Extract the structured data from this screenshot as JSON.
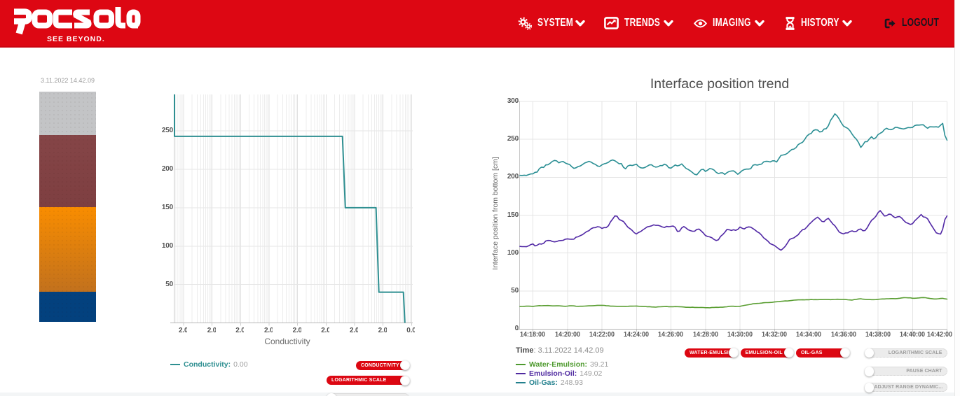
{
  "header": {
    "logo_text": "Rocsole",
    "tagline": "SEE BEYOND.",
    "nav": [
      {
        "label": "SYSTEM"
      },
      {
        "label": "TRENDS"
      },
      {
        "label": "IMAGING"
      },
      {
        "label": "HISTORY"
      }
    ],
    "logout_label": "LOGOUT",
    "brand_red": "#dd0713"
  },
  "tank": {
    "timestamp": "3.11.2022 14.42.09",
    "segments": [
      {
        "name": "gas",
        "color": "#c3c4c6"
      },
      {
        "name": "oil",
        "color": "#824245"
      },
      {
        "name": "emulsion",
        "color": "#f18a04"
      },
      {
        "name": "water",
        "color": "#03417e"
      }
    ]
  },
  "conductivity_chart": {
    "xlabel": "Conductivity",
    "yticks": [
      "250",
      "200",
      "150",
      "100",
      "50"
    ],
    "xticks": [
      "2.00",
      "2.00",
      "2.00",
      "2.00",
      "2.00",
      "2.00",
      "2.00",
      "2.00",
      "0.00"
    ],
    "legend": {
      "label": "Conductivity:",
      "value": "0.00"
    },
    "toggles_on": [
      {
        "label": "CONDUCTIVITY"
      },
      {
        "label": "LOGARITHMIC SCALE"
      }
    ]
  },
  "trend_chart": {
    "title": "Interface position trend",
    "ylabel": "Interface position from bottom [cm]",
    "yticks": [
      "300",
      "250",
      "200",
      "150",
      "100",
      "50",
      "0"
    ],
    "xticks": [
      "14:18:00",
      "14:20:00",
      "14:22:00",
      "14:24:00",
      "14:26:00",
      "14:28:00",
      "14:30:00",
      "14:32:00",
      "14:34:00",
      "14:36:00",
      "14:38:00",
      "14:40:00",
      "14:42:00"
    ],
    "time_label": "Time",
    "time_value": "3.11.2022 14.42.09",
    "legend": [
      {
        "label": "Water-Emulsion:",
        "value": "39.21",
        "color": "#4e9a2e"
      },
      {
        "label": "Emulsion-Oil:",
        "value": "149.02",
        "color": "#4f2aa0"
      },
      {
        "label": "Oil-Gas:",
        "value": "248.93",
        "color": "#22808d"
      }
    ],
    "toggles_on": [
      {
        "label": "WATER-EMULSION"
      },
      {
        "label": "EMULSION-OIL"
      },
      {
        "label": "OIL-GAS"
      }
    ],
    "toggles_off": [
      {
        "label": "LOGARITHMIC SCALE"
      },
      {
        "label": "PAUSE CHART"
      },
      {
        "label": "ADJUST RANGE DYNAMIC..."
      }
    ]
  },
  "chart_data": [
    {
      "type": "line",
      "title": "",
      "xlabel": "Conductivity",
      "ylabel": "",
      "x_scale": "log-decreasing",
      "x_tick_labels": [
        "2.00",
        "2.00",
        "2.00",
        "2.00",
        "2.00",
        "2.00",
        "2.00",
        "2.00",
        "0.00"
      ],
      "ylim": [
        0,
        298
      ],
      "grid": true,
      "series": [
        {
          "name": "Conductivity",
          "color": "#2e8f91",
          "current_value": "0.00",
          "profile_points": [
            [
              0,
              297.6
            ],
            [
              0,
              243
            ],
            [
              0.705,
              243
            ],
            [
              0.717,
              150
            ],
            [
              0.846,
              150
            ],
            [
              0.858,
              40
            ],
            [
              0.961,
              40
            ],
            [
              0.967,
              0
            ]
          ]
        }
      ]
    },
    {
      "type": "line",
      "title": "Interface position trend",
      "xlabel": "",
      "ylabel": "Interface position from bottom [cm]",
      "ylim": [
        0,
        300
      ],
      "grid": true,
      "x_minutes_start": 17.25,
      "x_minutes_step": 0.125,
      "x_window": [
        "14:17:15",
        "14:42:00"
      ],
      "series": [
        {
          "name": "Water-Emulsion",
          "color": "#5a9e32",
          "values": [
            29.42,
            29.53,
            29.76,
            29.93,
            29.92,
            29.79,
            29.65,
            30.01,
            30.32,
            30.69,
            30.5,
            30.67,
            30.64,
            30.75,
            30.53,
            30.27,
            30.29,
            30.33,
            30.46,
            30.19,
            29.92,
            29.76,
            29.99,
            30.41,
            30.44,
            30.26,
            29.83,
            29.75,
            29.8,
            29.86,
            29.96,
            30.19,
            30.38,
            30.36,
            30.54,
            30.75,
            31.04,
            31.01,
            31.04,
            30.9,
            30.52,
            30.35,
            29.95,
            29.91,
            29.8,
            29.73,
            29.76,
            29.74,
            29.75,
            29.64,
            29.74,
            29.92,
            29.95,
            29.97,
            30.11,
            29.79,
            29.76,
            29.46,
            29.51,
            29.19,
            29.28,
            28.93,
            28.76,
            28.63,
            29.01,
            29.06,
            29.24,
            29.35,
            29.46,
            29.16,
            29.18,
            29.14,
            29.31,
            29.22,
            29.2,
            29.02,
            28.79,
            28.47,
            28.47,
            28.38,
            28.48,
            28.29,
            28.26,
            28.18,
            28.26,
            28.18,
            27.84,
            27.89,
            27.81,
            28.23,
            28.23,
            28.43,
            28.3,
            28.57,
            28.54,
            28.93,
            29.08,
            29.69,
            29.85,
            29.8,
            29.48,
            29.53,
            29.74,
            30.39,
            30.89,
            31.38,
            31.81,
            32.29,
            33.04,
            33.35,
            33.48,
            33.65,
            33.98,
            34.39,
            34.65,
            34.64,
            34.78,
            35.01,
            35.48,
            35.73,
            35.91,
            36.32,
            36.54,
            36.83,
            36.73,
            37.11,
            37.5,
            37.83,
            38.01,
            38.18,
            38.21,
            38.36,
            38.22,
            38.47,
            38.44,
            38.71,
            38.47,
            38.58,
            38.46,
            38.62,
            38.56,
            38.71,
            38.72,
            38.67,
            38.49,
            38.65,
            38.74,
            39.08,
            38.95,
            38.9,
            38.86,
            38.67,
            38.32,
            38.09,
            37.92,
            38.63,
            38.95,
            39.45,
            39.65,
            39.13,
            38.94,
            38.72,
            38.67,
            38.46,
            38.49,
            38.63,
            38.91,
            39.26,
            39.37,
            39.45,
            39.72,
            39.69,
            39.89,
            39.89,
            39.76,
            39.97,
            40.34,
            40.84,
            41.15,
            41.09,
            40.89,
            40.86,
            40.36,
            40.37,
            40.55,
            40.83,
            41.13,
            41.27,
            41.04,
            40.54,
            40.07,
            39.79,
            39.41,
            39.41,
            39.69,
            40.08,
            40.23,
            39.62,
            39.21
          ]
        },
        {
          "name": "Emulsion-Oil",
          "color": "#5128a5",
          "values": [
            108.72,
            108.42,
            108.48,
            108.39,
            109.47,
            111.13,
            112.06,
            109.42,
            110.34,
            112.11,
            111.79,
            112.87,
            115.97,
            116.6,
            116.46,
            115.33,
            114.75,
            115.22,
            116.25,
            116.5,
            116.81,
            118.29,
            118.74,
            118.35,
            118.29,
            118.38,
            120.89,
            121.45,
            123.08,
            124.22,
            126.34,
            128.39,
            129.47,
            132.13,
            133.43,
            133.53,
            134.74,
            134.29,
            132.44,
            133.56,
            133.59,
            135.85,
            141.25,
            144.91,
            148.9,
            148.66,
            144.41,
            142.99,
            141.59,
            137.99,
            134.18,
            132.15,
            129.9,
            126.9,
            125.21,
            127.17,
            128.39,
            130.62,
            132.45,
            134.53,
            135.13,
            135.87,
            137.13,
            136.55,
            136.58,
            135.7,
            134.36,
            133.79,
            135.13,
            134.67,
            135.2,
            135.56,
            133.83,
            128.46,
            129.0,
            133.18,
            134.92,
            133.04,
            130.72,
            129.63,
            128.76,
            128.79,
            131.16,
            131.61,
            129.24,
            126.42,
            123.11,
            121.88,
            121.28,
            120.13,
            117.97,
            116.49,
            117.54,
            121.98,
            124.3,
            127.34,
            131.14,
            130.74,
            129.78,
            130.68,
            129.99,
            131.14,
            134.3,
            132.77,
            131.85,
            133.7,
            134.45,
            134.11,
            132.24,
            130.44,
            128.04,
            126.43,
            123.64,
            120.07,
            117.98,
            115.57,
            112.43,
            111.23,
            109.96,
            107.7,
            105.55,
            103.72,
            106.04,
            108.8,
            113.2,
            117.87,
            119.19,
            119.96,
            122.15,
            124.17,
            127.95,
            130.8,
            131.35,
            134.26,
            137.72,
            140.39,
            143.19,
            145.37,
            147.29,
            144.76,
            141.68,
            141.37,
            144.27,
            145.8,
            142.14,
            138.49,
            136.07,
            131.88,
            127.62,
            126.21,
            125.23,
            126.6,
            126.62,
            128.52,
            129.27,
            128.13,
            128.59,
            131.11,
            131.73,
            129.41,
            129.67,
            133.37,
            138.62,
            143.16,
            145.39,
            148.47,
            153.1,
            155.98,
            152.43,
            148.93,
            149.27,
            151.26,
            151.06,
            148.3,
            146.56,
            147.81,
            148.16,
            145.99,
            142.79,
            140.25,
            139.12,
            137.68,
            138.73,
            142.46,
            145.07,
            147.88,
            150.83,
            147.72,
            147.23,
            145.1,
            140.01,
            135.54,
            131.16,
            126.77,
            125.67,
            125.02,
            131.49,
            144.05,
            149.02
          ]
        },
        {
          "name": "Oil-Gas",
          "color": "#2b8f94",
          "values": [
            202.43,
            202.37,
            202.72,
            202.35,
            203.45,
            204.35,
            204.42,
            206.45,
            206.88,
            211.36,
            213.33,
            212.96,
            216.27,
            216.54,
            218.36,
            220.91,
            222.18,
            221.64,
            219.05,
            220.21,
            220.84,
            218.83,
            217.7,
            216.8,
            213.94,
            211.72,
            212.49,
            214.13,
            214.89,
            216.72,
            218.74,
            219.79,
            220.96,
            219.95,
            218.03,
            216.94,
            214.77,
            214.21,
            216.39,
            217.67,
            218.38,
            219.69,
            221.91,
            222.79,
            221.78,
            219.82,
            217.77,
            218.06,
            213.08,
            211.1,
            214.89,
            215.94,
            215.45,
            216.27,
            217.2,
            214.25,
            212.5,
            212.1,
            213.0,
            214.52,
            216.32,
            216.42,
            214.25,
            213.28,
            213.86,
            215.33,
            215.32,
            217.24,
            216.0,
            212.6,
            212.0,
            214.12,
            216.23,
            215.0,
            215.81,
            217.55,
            214.56,
            211.65,
            210.3,
            208.44,
            206.25,
            203.77,
            203.3,
            206.62,
            210.0,
            210.43,
            207.72,
            209.37,
            211.46,
            210.96,
            209.46,
            206.45,
            204.87,
            205.79,
            205.72,
            203.75,
            206.16,
            207.61,
            208.22,
            208.45,
            206.45,
            203.95,
            206.19,
            208.75,
            210.08,
            210.72,
            210.7,
            211.25,
            215.73,
            216.62,
            215.99,
            216.78,
            217.4,
            220.28,
            221.01,
            220.89,
            220.18,
            221.63,
            221.71,
            220.07,
            224.47,
            228.81,
            229.35,
            230.0,
            231.56,
            234.28,
            236.63,
            237.14,
            239.08,
            243.04,
            244.79,
            246.1,
            249.73,
            254.21,
            256.68,
            257.69,
            261.6,
            262.7,
            262.38,
            259.72,
            260.23,
            263.63,
            264.05,
            268.06,
            275.1,
            279.06,
            283.64,
            281.12,
            276.81,
            271.7,
            267.5,
            265.9,
            264.41,
            261.35,
            256.81,
            252.98,
            250.08,
            245.64,
            239.38,
            242.71,
            246.92,
            247.04,
            250.63,
            253.45,
            250.64,
            252.18,
            256.21,
            258.01,
            259.62,
            263.02,
            264.69,
            263.09,
            262.77,
            263.65,
            265.88,
            265.66,
            264.7,
            264.12,
            263.74,
            264.67,
            265.55,
            265.39,
            265.73,
            268.16,
            268.89,
            268.82,
            269.17,
            269.23,
            266.62,
            264.66,
            266.57,
            266.46,
            266.4,
            266.58,
            266.02,
            268.68,
            271.1,
            255.36,
            248.93
          ]
        }
      ]
    }
  ]
}
